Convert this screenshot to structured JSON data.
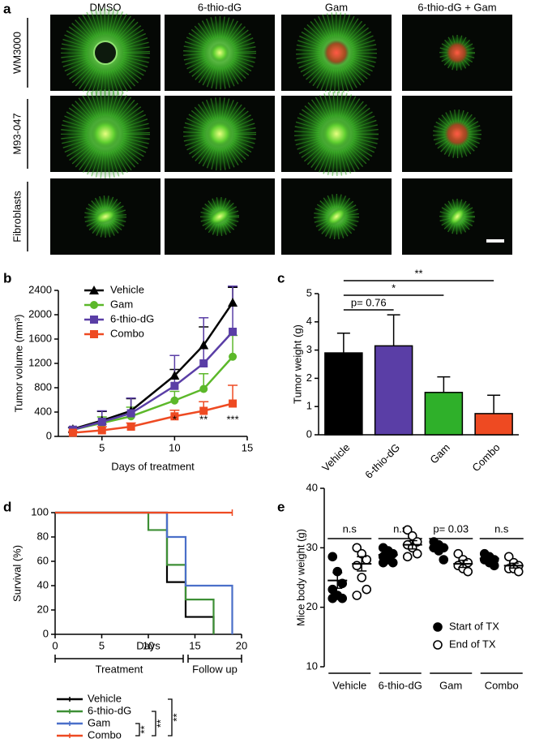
{
  "image_panel": {
    "panel_label": "a",
    "columns": [
      "DMSO",
      "6-thio-dG",
      "Gam",
      "6-thio-dG + Gam"
    ],
    "rows": [
      "WM3000",
      "M93-047",
      "Fibroblasts"
    ]
  },
  "chart_data": [
    {
      "type": "line",
      "panel_label": "b",
      "x": [
        3,
        5,
        7,
        10,
        12,
        14
      ],
      "xlim": [
        2,
        15
      ],
      "xticks": [
        5,
        10,
        15
      ],
      "ylim": [
        0,
        2400
      ],
      "yticks": [
        0,
        400,
        800,
        1200,
        1600,
        2000,
        2400
      ],
      "y_label": "Tumor volume (mm³)",
      "x_label": "Days of treatment",
      "series": [
        {
          "name": "Vehicle",
          "color": "#000000",
          "marker": "triangle",
          "values": [
            120,
            260,
            420,
            1000,
            1500,
            2200
          ],
          "errors": [
            30,
            150,
            200,
            100,
            300,
            250
          ]
        },
        {
          "name": "Gam",
          "color": "#5cb82a",
          "marker": "circle",
          "values": [
            110,
            220,
            330,
            590,
            780,
            1310
          ],
          "errors": [
            30,
            100,
            150,
            150,
            250,
            350
          ]
        },
        {
          "name": "6-thio-dG",
          "color": "#5a3ea6",
          "marker": "square",
          "values": [
            110,
            240,
            380,
            830,
            1200,
            1720
          ],
          "errors": [
            30,
            180,
            250,
            500,
            750,
            750
          ]
        },
        {
          "name": "Combo",
          "color": "#ee4a22",
          "marker": "square",
          "values": [
            60,
            100,
            160,
            330,
            420,
            540
          ],
          "errors": [
            20,
            60,
            60,
            100,
            150,
            300
          ]
        }
      ],
      "annotations": [
        {
          "text": "*",
          "x": 10
        },
        {
          "text": "**",
          "x": 12
        },
        {
          "text": "***",
          "x": 14
        }
      ]
    },
    {
      "type": "bar",
      "panel_label": "c",
      "categories": [
        "Vehicle",
        "6-thio-dG",
        "Gam",
        "Combo"
      ],
      "values": [
        2.9,
        3.15,
        1.5,
        0.75
      ],
      "errors": [
        0.7,
        1.1,
        0.55,
        0.65
      ],
      "colors": [
        "#000000",
        "#5a3ea6",
        "#2fb02a",
        "#ee4a22"
      ],
      "ylim": [
        0,
        5
      ],
      "yticks": [
        0,
        1,
        2,
        3,
        4,
        5
      ],
      "y_label": "Tumor weight (g)",
      "comparisons": [
        "p= 0.76",
        "*",
        "**"
      ]
    },
    {
      "type": "survival",
      "panel_label": "d",
      "xlim": [
        0,
        20
      ],
      "xticks": [
        0,
        5,
        10,
        15,
        20
      ],
      "ylim": [
        0,
        100
      ],
      "yticks": [
        0,
        20,
        40,
        60,
        80,
        100
      ],
      "y_label": "Survival (%)",
      "x_label": "Days",
      "series": [
        {
          "name": "Vehicle",
          "color": "#000000",
          "x": [
            0,
            12,
            14,
            17
          ],
          "values": [
            100,
            42.9,
            14.3,
            0
          ]
        },
        {
          "name": "6-thio-dG",
          "color": "#3d8f35",
          "x": [
            0,
            10,
            12,
            14,
            17
          ],
          "values": [
            100,
            85.7,
            57.1,
            28.6,
            0
          ]
        },
        {
          "name": "Gam",
          "color": "#4a6fc9",
          "x": [
            0,
            12,
            14,
            19
          ],
          "values": [
            100,
            80,
            40,
            0
          ]
        },
        {
          "name": "Combo",
          "color": "#ee4a22",
          "x": [
            0,
            19
          ],
          "values": [
            100,
            100
          ]
        }
      ],
      "phases": [
        {
          "label": "Treatment",
          "x": [
            0,
            14
          ]
        },
        {
          "label": "Follow up",
          "x": [
            14,
            20
          ]
        }
      ],
      "comparisons": [
        "**",
        "**",
        "**"
      ]
    },
    {
      "type": "dot",
      "panel_label": "e",
      "categories": [
        "Vehicle",
        "6-thio-dG",
        "Gam",
        "Combo"
      ],
      "ylim": [
        10,
        40
      ],
      "yticks": [
        10,
        20,
        30,
        40
      ],
      "y_label": "Mice body weight (g)",
      "series": [
        {
          "name": "Start of TX",
          "fill": "#000000",
          "points": [
            [
              28.5,
              26,
              24,
              23,
              22,
              21.5,
              21.5
            ],
            [
              30,
              29.5,
              29,
              28.5,
              28,
              27.5,
              27.5
            ],
            [
              31,
              30.5,
              30,
              30,
              29.5,
              28
            ],
            [
              29,
              28.5,
              28,
              28,
              27.5,
              27
            ]
          ],
          "means": [
            24.5,
            28.8,
            30,
            28.2
          ],
          "sems": [
            1.3,
            0.5,
            0.4,
            0.3
          ]
        },
        {
          "name": "End of TX",
          "fill": "none",
          "points": [
            [
              30,
              29,
              28,
              27,
              25,
              23,
              22
            ],
            [
              33,
              32,
              31,
              30.5,
              30,
              29,
              28.5
            ],
            [
              29,
              28,
              27.5,
              27,
              26.5,
              26
            ],
            [
              28.5,
              27.5,
              27,
              26.5,
              26.5,
              26
            ]
          ],
          "means": [
            27.3,
            30.5,
            27.3,
            27
          ],
          "sems": [
            1.2,
            0.7,
            0.6,
            0.4
          ]
        }
      ],
      "comparisons": [
        "n.s",
        "n.s",
        "p= 0.03",
        "n.s"
      ]
    }
  ]
}
